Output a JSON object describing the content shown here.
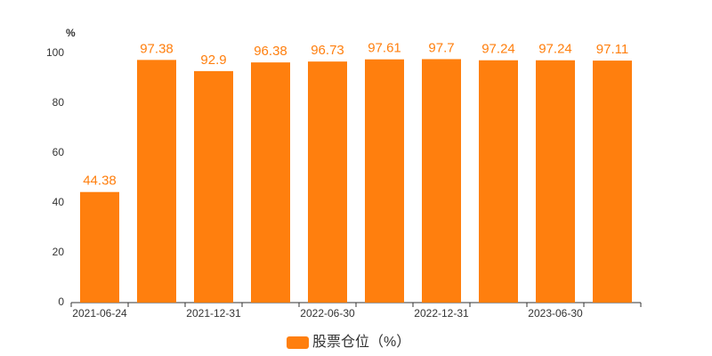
{
  "chart_data": {
    "type": "bar",
    "y_unit": "%",
    "categories": [
      "2021-06-24",
      null,
      "2021-12-31",
      null,
      "2022-06-30",
      null,
      "2022-12-31",
      null,
      "2023-06-30",
      null
    ],
    "series": [
      {
        "name": "股票仓位（%）",
        "color": "#ff7f0e",
        "values": [
          44.38,
          97.38,
          92.9,
          96.38,
          96.73,
          97.61,
          97.7,
          97.24,
          97.24,
          97.11
        ]
      }
    ],
    "ylim": [
      0,
      100
    ],
    "yticks": [
      0,
      20,
      40,
      60,
      80,
      100
    ],
    "grid": false,
    "value_labels_shown": true
  }
}
